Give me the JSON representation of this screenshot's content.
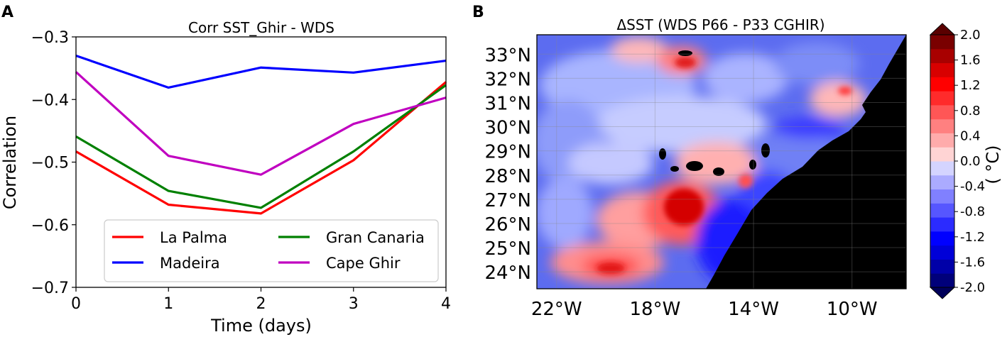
{
  "panels": {
    "a": {
      "letter": "A",
      "title": "Corr SST_Ghir - WDS",
      "xlabel": "Time (days)",
      "ylabel": "Correlation"
    },
    "b": {
      "letter": "B",
      "title": "ΔSST (WDS P66 - P33 CGHIR)",
      "colorbar_label": "( °C)"
    }
  },
  "chart_data": [
    {
      "type": "line",
      "title": "Corr SST_Ghir - WDS",
      "xlabel": "Time (days)",
      "ylabel": "Correlation",
      "xlim": [
        0,
        4
      ],
      "ylim": [
        -0.7,
        -0.3
      ],
      "x": [
        0,
        1,
        2,
        3,
        4
      ],
      "xticks": [
        "0",
        "1",
        "2",
        "3",
        "4"
      ],
      "yticks": [
        "−0.7",
        "−0.6",
        "−0.5",
        "−0.4",
        "−0.3"
      ],
      "ytick_values": [
        -0.7,
        -0.6,
        -0.5,
        -0.4,
        -0.3
      ],
      "legend_position": "lower-right",
      "grid": false,
      "series": [
        {
          "name": "La Palma",
          "color": "#ff0000",
          "values": [
            -0.483,
            -0.568,
            -0.582,
            -0.497,
            -0.372
          ]
        },
        {
          "name": "Madeira",
          "color": "#0000ff",
          "values": [
            -0.33,
            -0.381,
            -0.349,
            -0.357,
            -0.338
          ]
        },
        {
          "name": "Gran Canaria",
          "color": "#008000",
          "values": [
            -0.459,
            -0.546,
            -0.573,
            -0.483,
            -0.377
          ]
        },
        {
          "name": "Cape Ghir",
          "color": "#c000c0",
          "values": [
            -0.356,
            -0.49,
            -0.52,
            -0.439,
            -0.397
          ]
        }
      ]
    },
    {
      "type": "heatmap",
      "title": "ΔSST (WDS P66 - P33 CGHIR)",
      "x_tick_labels": [
        "22°W",
        "18°W",
        "14°W",
        "10°W"
      ],
      "x_tick_values": [
        -22,
        -18,
        -14,
        -10
      ],
      "y_tick_labels": [
        "24°N",
        "25°N",
        "26°N",
        "27°N",
        "28°N",
        "29°N",
        "30°N",
        "31°N",
        "32°N",
        "33°N"
      ],
      "y_tick_values": [
        24,
        25,
        26,
        27,
        28,
        29,
        30,
        31,
        32,
        33
      ],
      "lon_range": [
        -22.8,
        -7.8
      ],
      "lat_range": [
        23.3,
        33.8
      ],
      "colorbar": {
        "label": "( °C)",
        "range": [
          -2.0,
          2.0
        ],
        "ticks": [
          "2.0",
          "1.6",
          "1.2",
          "0.8",
          "0.4",
          "0.0",
          "-0.4",
          "-0.8",
          "-1.2",
          "-1.6",
          "-2.0"
        ],
        "colors": [
          "#00007a",
          "#0000a8",
          "#0000d8",
          "#0000ff",
          "#2b2bff",
          "#5656ff",
          "#8080ff",
          "#ababff",
          "#d4d4ff",
          "#ffd4d4",
          "#ffabab",
          "#ff8080",
          "#ff5656",
          "#ff2b2b",
          "#ff0000",
          "#d80000",
          "#a80000",
          "#7a0000"
        ]
      },
      "land_color": "#000000"
    }
  ]
}
